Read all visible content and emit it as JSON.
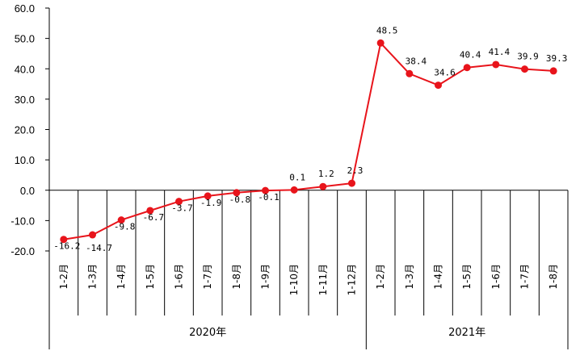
{
  "chart_data": {
    "type": "line",
    "title": "",
    "xlabel": "",
    "ylabel": "",
    "ylim": [
      -20,
      60
    ],
    "yticks": [
      "-20.0",
      "-10.0",
      "0.0",
      "10.0",
      "20.0",
      "30.0",
      "40.0",
      "50.0",
      "60.0"
    ],
    "grid": false,
    "color": "#e8141b",
    "categories": [
      "1-2月",
      "1-3月",
      "1-4月",
      "1-5月",
      "1-6月",
      "1-7月",
      "1-8月",
      "1-9月",
      "1-10月",
      "1-11月",
      "1-12月",
      "1-2月",
      "1-3月",
      "1-4月",
      "1-5月",
      "1-6月",
      "1-7月",
      "1-8月"
    ],
    "groups": [
      {
        "label": "2020年",
        "count": 11
      },
      {
        "label": "2021年",
        "count": 7
      }
    ],
    "values": [
      -16.2,
      -14.7,
      -9.8,
      -6.7,
      -3.7,
      -1.9,
      -0.8,
      -0.1,
      0.1,
      1.2,
      2.3,
      48.5,
      38.4,
      34.6,
      40.4,
      41.4,
      39.9,
      39.3
    ],
    "data_labels": [
      "-16.2",
      "-14.7",
      "-9.8",
      "-6.7",
      "-3.7",
      "-1.9",
      "-0.8",
      "-0.1",
      "0.1",
      "1.2",
      "2.3",
      "48.5",
      "38.4",
      "34.6",
      "40.4",
      "41.4",
      "39.9",
      "39.3"
    ]
  }
}
